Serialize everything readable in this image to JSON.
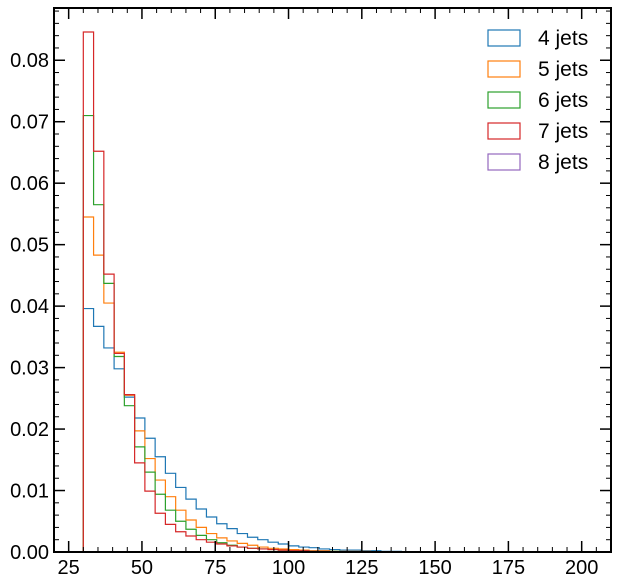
{
  "chart_data": {
    "type": "histogram-step",
    "title": "",
    "xlabel": "",
    "ylabel": "",
    "xlim": [
      20,
      210
    ],
    "ylim": [
      0,
      0.0885
    ],
    "xticks": [
      25,
      50,
      75,
      100,
      125,
      150,
      175,
      200
    ],
    "xtick_labels": [
      "25",
      "50",
      "75",
      "100",
      "125",
      "150",
      "175",
      "200"
    ],
    "yticks": [
      0.0,
      0.01,
      0.02,
      0.03,
      0.04,
      0.05,
      0.06,
      0.07,
      0.08
    ],
    "ytick_labels": [
      "0.00",
      "0.01",
      "0.02",
      "0.03",
      "0.04",
      "0.05",
      "0.06",
      "0.07",
      "0.08"
    ],
    "legend_position": "top-right",
    "bin_edges": [
      30,
      33.5,
      37,
      40.5,
      44,
      47.5,
      51,
      54.5,
      58,
      61.5,
      65,
      68.5,
      72,
      75.5,
      79,
      82.5,
      86,
      89.5,
      93,
      96.5,
      100,
      103.5,
      107,
      110.5,
      114,
      117.5,
      121,
      124.5,
      128,
      131.5,
      135,
      138.5
    ],
    "series": [
      {
        "name": "4 jets",
        "color": "#1f77b4",
        "values": [
          0.0396,
          0.0367,
          0.0332,
          0.0298,
          0.0252,
          0.0218,
          0.0185,
          0.0155,
          0.0128,
          0.0105,
          0.0086,
          0.007,
          0.0057,
          0.0046,
          0.0038,
          0.003,
          0.0024,
          0.002,
          0.0016,
          0.0013,
          0.001,
          0.0008,
          0.0007,
          0.0005,
          0.0004,
          0.0003,
          0.0003,
          0.0002,
          0.0002,
          0.0001,
          0.0001
        ]
      },
      {
        "name": "5 jets",
        "color": "#ff7f0e",
        "values": [
          0.0545,
          0.0483,
          0.0405,
          0.0325,
          0.0255,
          0.0197,
          0.0152,
          0.0117,
          0.009,
          0.0068,
          0.0052,
          0.004,
          0.003,
          0.0023,
          0.0018,
          0.0014,
          0.0011,
          0.0008,
          0.0006,
          0.0005,
          0.0004,
          0.0003,
          0.0002,
          0.0002,
          0.0001,
          0.0001,
          0.0001,
          0.0001,
          0.0,
          0.0,
          0.0
        ]
      },
      {
        "name": "6 jets",
        "color": "#2ca02c",
        "values": [
          0.071,
          0.0565,
          0.0437,
          0.0318,
          0.0238,
          0.0171,
          0.013,
          0.0094,
          0.0068,
          0.005,
          0.0037,
          0.0027,
          0.002,
          0.0015,
          0.0011,
          0.0008,
          0.0006,
          0.0005,
          0.0004,
          0.0003,
          0.0002,
          0.0002,
          0.0001,
          0.0001,
          0.0001,
          0.0,
          0.0,
          0.0,
          0.0,
          0.0,
          0.0
        ]
      },
      {
        "name": "7 jets",
        "color": "#d62728",
        "values": [
          0.0846,
          0.0652,
          0.0452,
          0.0323,
          0.0256,
          0.0145,
          0.0099,
          0.0063,
          0.0045,
          0.0033,
          0.0026,
          0.002,
          0.0016,
          0.0013,
          0.001,
          0.0008,
          0.0006,
          0.0005,
          0.0004,
          0.0003,
          0.0002,
          0.0002,
          0.0001,
          0.0001,
          0.0,
          0.0,
          0.0,
          0.0,
          0.0,
          0.0,
          0.0
        ]
      },
      {
        "name": "8 jets",
        "color": "#9467bd",
        "values": []
      }
    ]
  }
}
